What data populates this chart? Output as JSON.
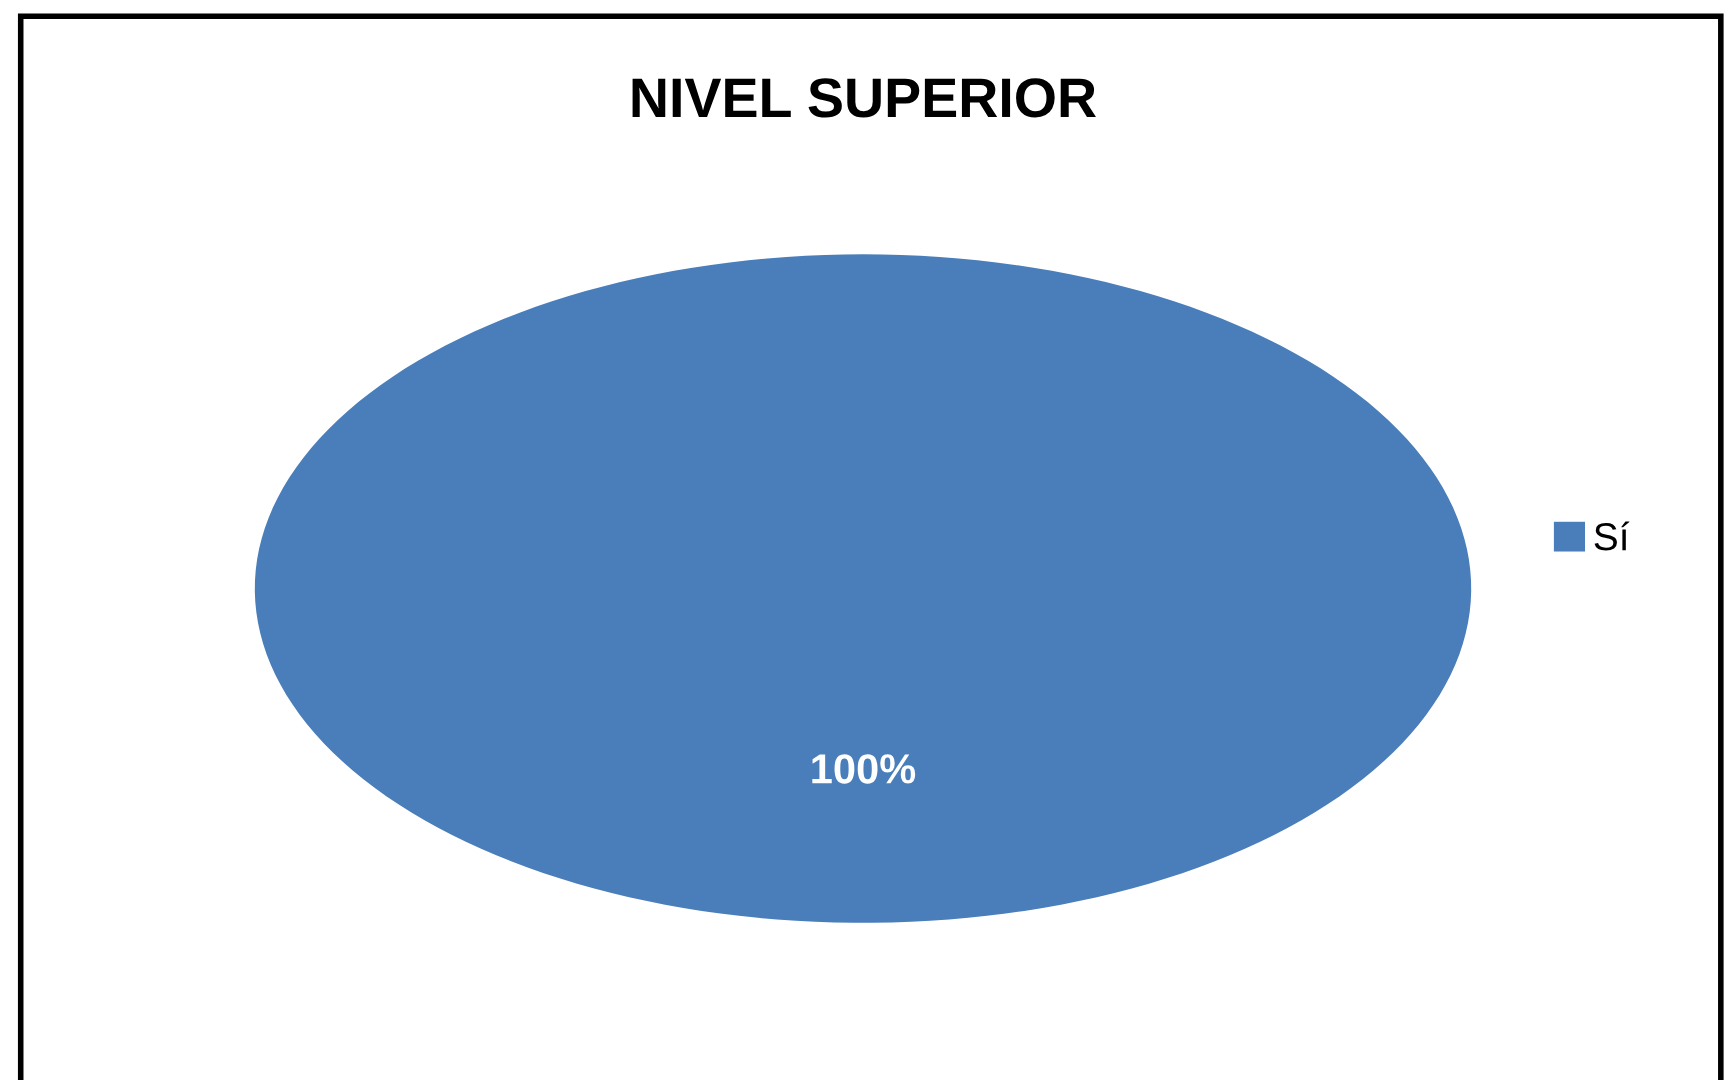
{
  "chart_data": {
    "type": "pie",
    "title": "NIVEL SUPERIOR",
    "categories": [
      "Sí"
    ],
    "values": [
      100
    ],
    "colors": [
      "#4a7ebb"
    ],
    "value_labels": [
      "100%"
    ],
    "legend": "right"
  }
}
